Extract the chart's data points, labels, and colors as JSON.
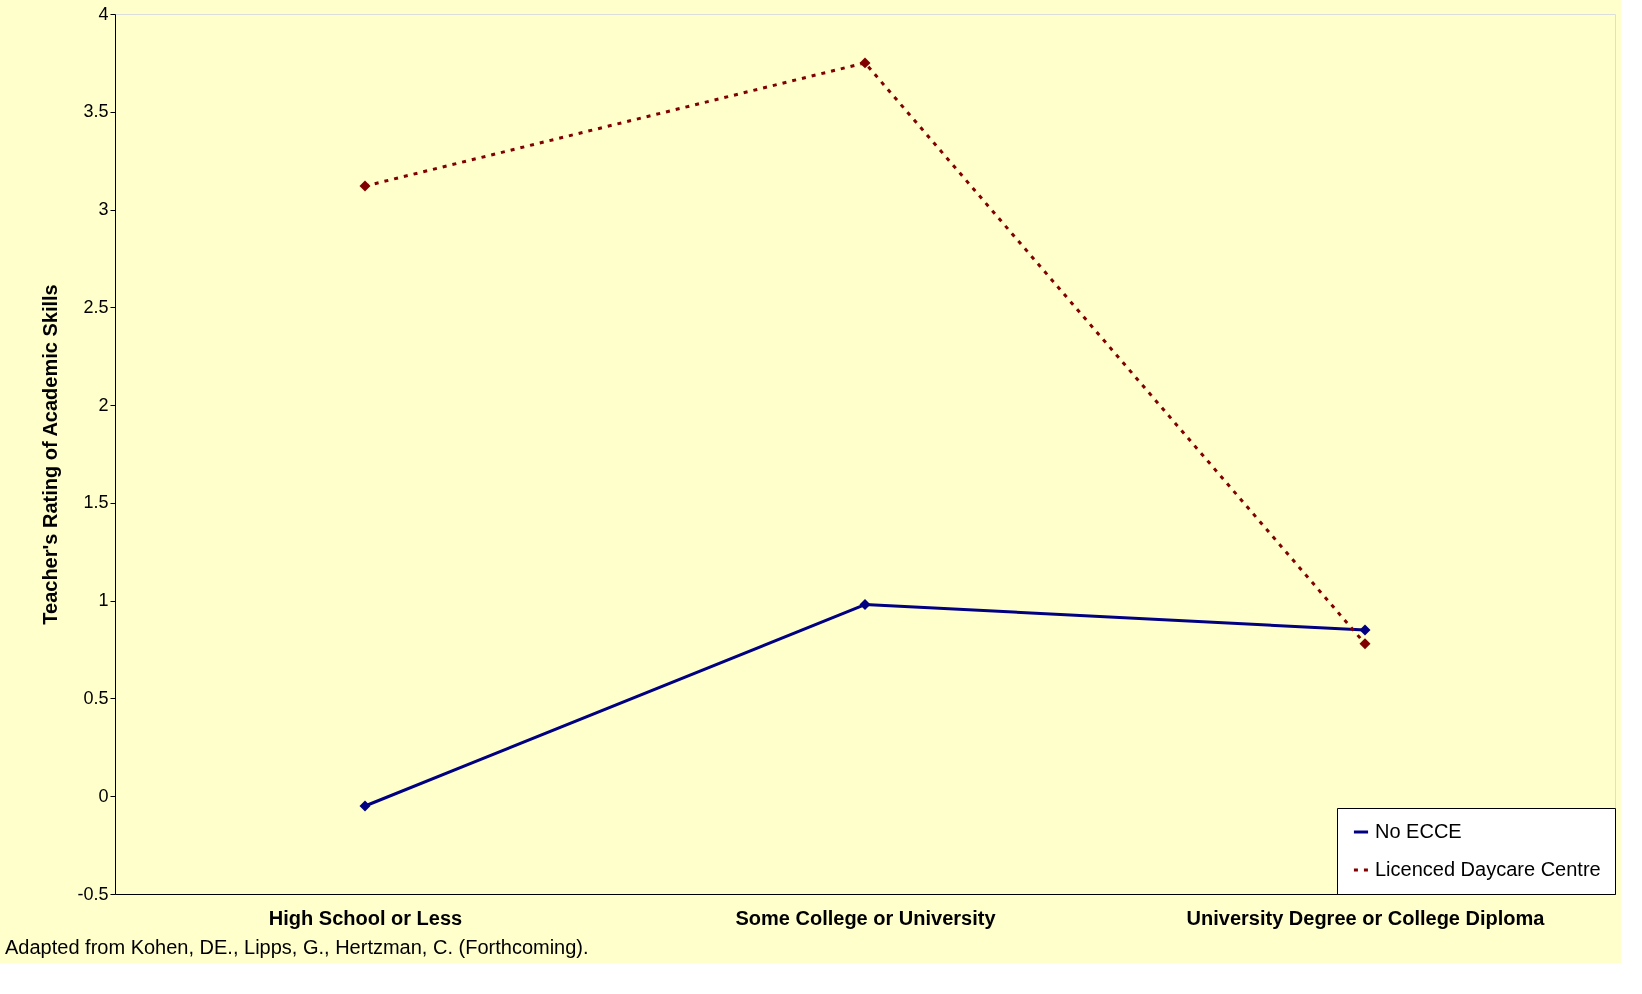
{
  "chart_data": {
    "type": "line",
    "ylabel": "Teacher's Rating of Academic Skills",
    "categories": [
      "High School or Less",
      "Some College or University",
      "University Degree or College Diploma"
    ],
    "series": [
      {
        "name": "No ECCE",
        "color": "#000080",
        "values": [
          -0.05,
          0.98,
          0.85
        ],
        "line_style": "solid"
      },
      {
        "name": "Licenced Daycare Centre",
        "color": "#800000",
        "values": [
          3.12,
          3.75,
          0.78
        ],
        "line_style": "dotted"
      }
    ],
    "ylim": [
      -0.5,
      4
    ],
    "yticks": [
      -0.5,
      0,
      0.5,
      1,
      1.5,
      2,
      2.5,
      3,
      3.5,
      4
    ],
    "marker": "diamond",
    "grid": false,
    "legend": "bottom right",
    "annotations": [
      "Adapted from Kohen, DE., Lipps, G., Hertzman, C. (Forthcoming)."
    ]
  }
}
